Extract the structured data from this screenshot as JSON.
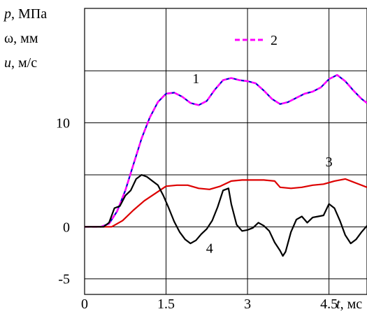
{
  "chart_data": {
    "type": "line",
    "ylabel_lines": [
      {
        "symbol": "p",
        "unit": ", МПа"
      },
      {
        "symbol": "ω",
        "unit": ", мм"
      },
      {
        "symbol": "u",
        "unit": ", м/с"
      }
    ],
    "xlabel": {
      "symbol": "t",
      "unit": ", мс"
    },
    "xlim": [
      0,
      5.2
    ],
    "ylim": [
      -6.5,
      21
    ],
    "x_ticks": [
      "0",
      "1.5",
      "3",
      "4.5"
    ],
    "x_tick_values": [
      0,
      1.5,
      3,
      4.5
    ],
    "y_ticks": [
      "10",
      "0",
      "-5"
    ],
    "y_tick_values": [
      10,
      0,
      -5
    ],
    "grid_x": [
      1.5,
      3,
      4.5
    ],
    "grid_y": [
      -5,
      0,
      5,
      10,
      15
    ],
    "grid": true,
    "legend": {
      "label": "2",
      "placement": "top-right",
      "series_index": 1
    },
    "series": [
      {
        "name": "1",
        "color": "#0000cc",
        "dash": "solid",
        "points": [
          [
            0,
            0
          ],
          [
            0.3,
            0
          ],
          [
            0.45,
            0.3
          ],
          [
            0.6,
            1.5
          ],
          [
            0.75,
            3.5
          ],
          [
            0.9,
            6
          ],
          [
            1.05,
            8.5
          ],
          [
            1.2,
            10.5
          ],
          [
            1.35,
            12
          ],
          [
            1.5,
            12.8
          ],
          [
            1.65,
            12.9
          ],
          [
            1.8,
            12.5
          ],
          [
            1.95,
            11.9
          ],
          [
            2.1,
            11.7
          ],
          [
            2.25,
            12.1
          ],
          [
            2.4,
            13.2
          ],
          [
            2.55,
            14.1
          ],
          [
            2.7,
            14.3
          ],
          [
            2.85,
            14.1
          ],
          [
            3.0,
            14.0
          ],
          [
            3.15,
            13.8
          ],
          [
            3.3,
            13.1
          ],
          [
            3.45,
            12.3
          ],
          [
            3.6,
            11.8
          ],
          [
            3.75,
            12.0
          ],
          [
            3.9,
            12.4
          ],
          [
            4.05,
            12.8
          ],
          [
            4.2,
            13.0
          ],
          [
            4.35,
            13.4
          ],
          [
            4.5,
            14.2
          ],
          [
            4.65,
            14.6
          ],
          [
            4.8,
            14.0
          ],
          [
            4.95,
            13.1
          ],
          [
            5.1,
            12.3
          ],
          [
            5.2,
            11.9
          ]
        ]
      },
      {
        "name": "2",
        "color": "#ff00ff",
        "dash": "dashed",
        "points": [
          [
            0,
            0
          ],
          [
            0.3,
            0
          ],
          [
            0.45,
            0.3
          ],
          [
            0.6,
            1.5
          ],
          [
            0.75,
            3.5
          ],
          [
            0.9,
            6
          ],
          [
            1.05,
            8.5
          ],
          [
            1.2,
            10.5
          ],
          [
            1.35,
            12
          ],
          [
            1.5,
            12.8
          ],
          [
            1.65,
            12.9
          ],
          [
            1.8,
            12.5
          ],
          [
            1.95,
            11.9
          ],
          [
            2.1,
            11.7
          ],
          [
            2.25,
            12.1
          ],
          [
            2.4,
            13.2
          ],
          [
            2.55,
            14.1
          ],
          [
            2.7,
            14.3
          ],
          [
            2.85,
            14.1
          ],
          [
            3.0,
            14.0
          ],
          [
            3.15,
            13.8
          ],
          [
            3.3,
            13.1
          ],
          [
            3.45,
            12.3
          ],
          [
            3.6,
            11.8
          ],
          [
            3.75,
            12.0
          ],
          [
            3.9,
            12.4
          ],
          [
            4.05,
            12.8
          ],
          [
            4.2,
            13.0
          ],
          [
            4.35,
            13.4
          ],
          [
            4.5,
            14.2
          ],
          [
            4.65,
            14.6
          ],
          [
            4.8,
            14.0
          ],
          [
            4.95,
            13.1
          ],
          [
            5.1,
            12.3
          ],
          [
            5.2,
            11.9
          ]
        ]
      },
      {
        "name": "3",
        "color": "#dd0000",
        "dash": "solid",
        "points": [
          [
            0,
            0
          ],
          [
            0.5,
            0
          ],
          [
            0.7,
            0.6
          ],
          [
            0.9,
            1.6
          ],
          [
            1.1,
            2.5
          ],
          [
            1.3,
            3.2
          ],
          [
            1.5,
            3.9
          ],
          [
            1.7,
            4.0
          ],
          [
            1.9,
            4.0
          ],
          [
            2.1,
            3.7
          ],
          [
            2.3,
            3.6
          ],
          [
            2.5,
            3.9
          ],
          [
            2.7,
            4.4
          ],
          [
            2.9,
            4.5
          ],
          [
            3.1,
            4.5
          ],
          [
            3.3,
            4.5
          ],
          [
            3.5,
            4.4
          ],
          [
            3.6,
            3.8
          ],
          [
            3.8,
            3.7
          ],
          [
            4.0,
            3.8
          ],
          [
            4.2,
            4.0
          ],
          [
            4.4,
            4.1
          ],
          [
            4.6,
            4.4
          ],
          [
            4.8,
            4.6
          ],
          [
            5.0,
            4.2
          ],
          [
            5.2,
            3.8
          ]
        ]
      },
      {
        "name": "4",
        "color": "#000000",
        "dash": "solid",
        "points": [
          [
            0,
            0
          ],
          [
            0.35,
            0
          ],
          [
            0.45,
            0.4
          ],
          [
            0.55,
            1.8
          ],
          [
            0.65,
            2.0
          ],
          [
            0.75,
            3.0
          ],
          [
            0.85,
            3.5
          ],
          [
            0.95,
            4.6
          ],
          [
            1.05,
            5.0
          ],
          [
            1.15,
            4.8
          ],
          [
            1.25,
            4.4
          ],
          [
            1.35,
            4.0
          ],
          [
            1.45,
            3.0
          ],
          [
            1.55,
            1.8
          ],
          [
            1.65,
            0.5
          ],
          [
            1.75,
            -0.5
          ],
          [
            1.85,
            -1.2
          ],
          [
            1.95,
            -1.6
          ],
          [
            2.05,
            -1.3
          ],
          [
            2.15,
            -0.7
          ],
          [
            2.25,
            -0.2
          ],
          [
            2.35,
            0.6
          ],
          [
            2.45,
            1.9
          ],
          [
            2.55,
            3.5
          ],
          [
            2.65,
            3.7
          ],
          [
            2.7,
            2.2
          ],
          [
            2.8,
            0.2
          ],
          [
            2.9,
            -0.4
          ],
          [
            3.0,
            -0.3
          ],
          [
            3.1,
            -0.1
          ],
          [
            3.2,
            0.4
          ],
          [
            3.3,
            0.1
          ],
          [
            3.4,
            -0.4
          ],
          [
            3.5,
            -1.5
          ],
          [
            3.6,
            -2.3
          ],
          [
            3.65,
            -2.8
          ],
          [
            3.7,
            -2.4
          ],
          [
            3.8,
            -0.5
          ],
          [
            3.9,
            0.7
          ],
          [
            4.0,
            1.0
          ],
          [
            4.1,
            0.4
          ],
          [
            4.2,
            0.9
          ],
          [
            4.3,
            1.0
          ],
          [
            4.4,
            1.1
          ],
          [
            4.5,
            2.2
          ],
          [
            4.6,
            1.8
          ],
          [
            4.7,
            0.6
          ],
          [
            4.8,
            -0.8
          ],
          [
            4.9,
            -1.6
          ],
          [
            5.0,
            -1.2
          ],
          [
            5.1,
            -0.5
          ],
          [
            5.2,
            0.1
          ]
        ]
      }
    ],
    "series_label_positions": [
      {
        "text": "1",
        "x": 2.05,
        "y": 13.8
      },
      {
        "text": "3",
        "x": 4.5,
        "y": 5.8
      },
      {
        "text": "4",
        "x": 2.3,
        "y": -2.5
      }
    ]
  }
}
